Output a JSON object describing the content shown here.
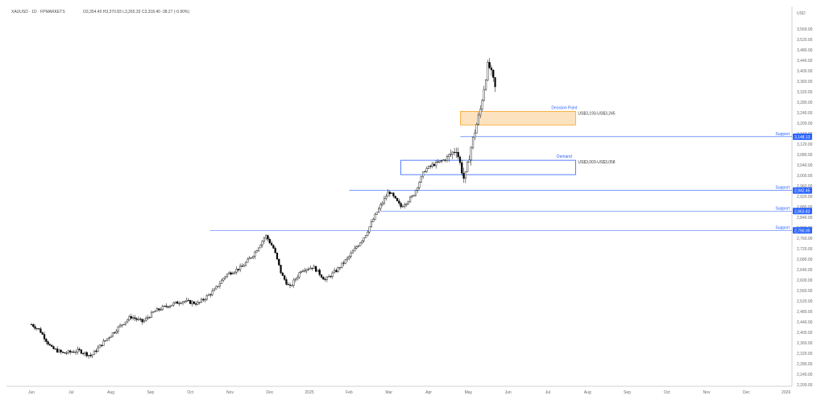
{
  "header": {
    "symbol": "XAUUSD · 1D · FPMARKETS",
    "ohlc": "O3,354.40 H3,370.83 L3,265.33 C3,318.40 -38.27 (-0.90%)"
  },
  "price_axis_label": "USD",
  "chart_data": {
    "type": "candlestick",
    "title": "",
    "xlabel": "",
    "ylabel": "USD",
    "ylim": [
      3183,
      3600
    ],
    "x_ticks": [
      "Jun",
      "Jul",
      "Aug",
      "Sep",
      "Oct",
      "Nov",
      "Dec",
      "2025",
      "Feb",
      "Mar",
      "Apr",
      "May",
      "Jun",
      "Jul",
      "Aug",
      "Sep",
      "Oct",
      "Nov",
      "Dec",
      "2026"
    ],
    "y_ticks": [
      "3,560.00",
      "3,520.00",
      "3,480.00",
      "3,440.00",
      "3,400.00",
      "3,360.00",
      "3,320.00",
      "3,280.00",
      "3,240.00",
      "3,200.00",
      "3,160.00",
      "3,120.00",
      "3,080.00",
      "3,040.00",
      "3,000.00",
      "2,960.00",
      "2,920.00",
      "2,880.00",
      "2,840.00",
      "2,800.00",
      "2,760.00",
      "2,720.00",
      "2,680.00",
      "2,640.00",
      "2,600.00",
      "2,560.00",
      "2,520.00",
      "2,480.00",
      "2,440.00",
      "2,400.00",
      "2,360.00",
      "2,320.00",
      "2,280.00",
      "2,240.00",
      "2,200.00"
    ],
    "levels": [
      {
        "label": "Support",
        "value": 3148.13,
        "price_tag": "3,148.13"
      },
      {
        "label": "Support",
        "value": 2942.45,
        "price_tag": "2,942.45"
      },
      {
        "label": "Support",
        "value": 2863.83,
        "price_tag": "2,863.83"
      },
      {
        "label": "Support",
        "value": 2790.0,
        "price_tag": "2,790.00"
      }
    ],
    "zones": [
      {
        "label": "Decision Point",
        "range_text": "US$3,193-US$3,245",
        "low": 3193,
        "high": 3245,
        "from_month": 10.8,
        "to_month": 13.7,
        "color": "#f5a623"
      },
      {
        "label": "Demand",
        "range_text": "US$3,003-US$3,058",
        "low": 3003,
        "high": 3058,
        "from_month": 9.3,
        "to_month": 13.7,
        "color": "#2962ff"
      }
    ],
    "price_path": [
      [
        0.0,
        2430
      ],
      [
        0.2,
        2410
      ],
      [
        0.5,
        2340
      ],
      [
        0.8,
        2320
      ],
      [
        1.2,
        2330
      ],
      [
        1.5,
        2310
      ],
      [
        1.8,
        2360
      ],
      [
        2.2,
        2420
      ],
      [
        2.5,
        2460
      ],
      [
        2.8,
        2440
      ],
      [
        3.1,
        2480
      ],
      [
        3.4,
        2500
      ],
      [
        3.8,
        2520
      ],
      [
        4.2,
        2510
      ],
      [
        4.6,
        2560
      ],
      [
        4.9,
        2620
      ],
      [
        5.3,
        2650
      ],
      [
        5.6,
        2700
      ],
      [
        5.9,
        2770
      ],
      [
        6.1,
        2720
      ],
      [
        6.3,
        2620
      ],
      [
        6.5,
        2570
      ],
      [
        6.8,
        2640
      ],
      [
        7.1,
        2650
      ],
      [
        7.4,
        2600
      ],
      [
        7.7,
        2640
      ],
      [
        8.0,
        2690
      ],
      [
        8.4,
        2770
      ],
      [
        8.7,
        2860
      ],
      [
        9.0,
        2940
      ],
      [
        9.3,
        2880
      ],
      [
        9.6,
        2920
      ],
      [
        9.9,
        3020
      ],
      [
        10.1,
        3040
      ],
      [
        10.4,
        3060
      ],
      [
        10.7,
        3100
      ],
      [
        10.9,
        2980
      ],
      [
        11.1,
        3130
      ],
      [
        11.3,
        3250
      ],
      [
        11.5,
        3430
      ],
      [
        11.6,
        3380
      ],
      [
        11.7,
        3318
      ]
    ],
    "grid": false
  },
  "colors": {
    "level_line": "#2962ff",
    "candle_up": "#ffffff",
    "candle_down": "#000000",
    "decision_zone_fill": "#fde2bf",
    "decision_zone_border": "#f5a623",
    "demand_zone_fill": "#ffffff",
    "demand_zone_border": "#2962ff"
  }
}
